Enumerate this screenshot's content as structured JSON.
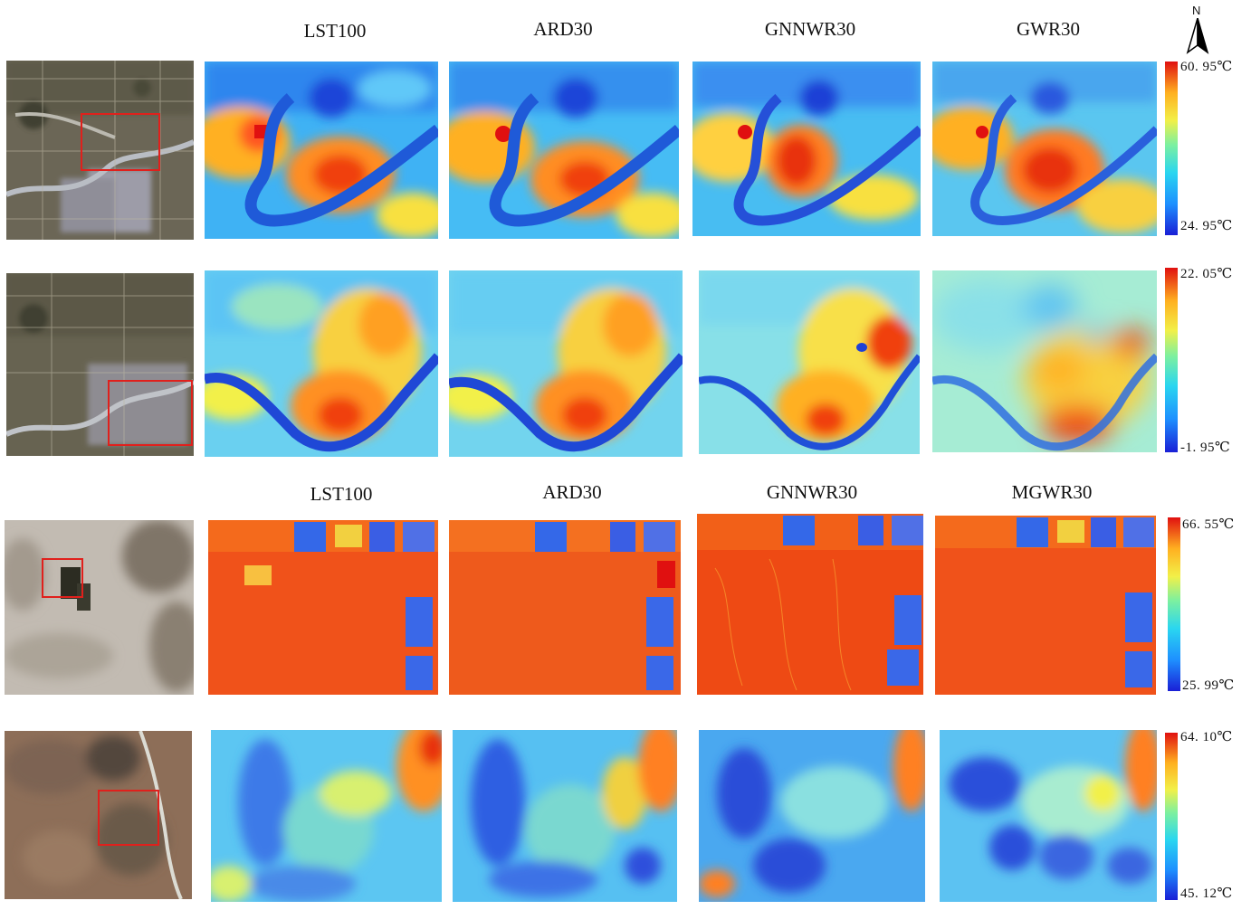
{
  "figure": {
    "top_headers": [
      "LST100",
      "ARD30",
      "GNNWR30",
      "GWR30"
    ],
    "bottom_headers": [
      "LST100",
      "ARD30",
      "GNNWR30",
      "MGWR30"
    ],
    "north_label": "N",
    "rows": [
      {
        "name": "row-1",
        "max_label": "60. 95℃",
        "min_label": "24. 95℃"
      },
      {
        "name": "row-2",
        "max_label": "22. 05℃",
        "min_label": "-1. 95℃"
      },
      {
        "name": "row-3",
        "max_label": "66. 55℃",
        "min_label": "25. 99℃"
      },
      {
        "name": "row-4",
        "max_label": "64. 10℃",
        "min_label": "45. 12℃"
      }
    ],
    "colormap": [
      "#1a1fd6",
      "#1e90ff",
      "#2ad6f0",
      "#7cf0a0",
      "#f2f048",
      "#ffb020",
      "#f04010",
      "#e01010"
    ],
    "highlight_box_color": "#e0201c"
  }
}
